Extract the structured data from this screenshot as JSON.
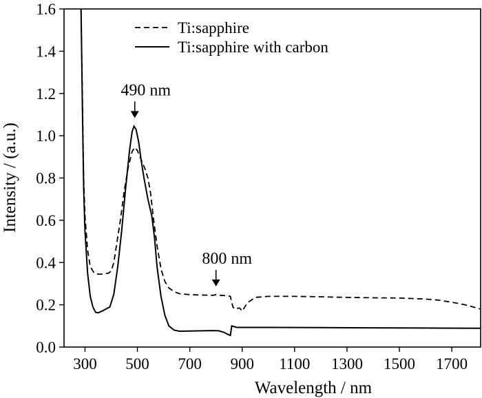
{
  "chart_data": {
    "type": "line",
    "title": "",
    "xlabel": "Wavelength / nm",
    "ylabel": "Intensity / (a.u.)",
    "xlim": [
      220,
      1810
    ],
    "ylim": [
      0.0,
      1.6
    ],
    "x_ticks": [
      300,
      500,
      700,
      900,
      1100,
      1300,
      1500,
      1700
    ],
    "x_tick_labels": [
      "300",
      "500",
      "700",
      "900",
      "1100",
      "1300",
      "1500",
      "1700"
    ],
    "y_ticks": [
      0.0,
      0.2,
      0.4,
      0.6,
      0.8,
      1.0,
      1.2,
      1.4,
      1.6
    ],
    "y_tick_labels": [
      "0.0",
      "0.2",
      "0.4",
      "0.6",
      "0.8",
      "1.0",
      "1.2",
      "1.4",
      "1.6"
    ],
    "grid": false,
    "legend_position": "top-center",
    "series": [
      {
        "name": "Ti:sapphire",
        "style": "dashed",
        "color": "#000000",
        "points": [
          [
            285,
            1.6
          ],
          [
            290,
            1.2
          ],
          [
            295,
            0.8
          ],
          [
            300,
            0.62
          ],
          [
            310,
            0.46
          ],
          [
            320,
            0.38
          ],
          [
            335,
            0.35
          ],
          [
            350,
            0.345
          ],
          [
            370,
            0.345
          ],
          [
            390,
            0.35
          ],
          [
            400,
            0.36
          ],
          [
            410,
            0.4
          ],
          [
            420,
            0.48
          ],
          [
            435,
            0.6
          ],
          [
            450,
            0.74
          ],
          [
            465,
            0.85
          ],
          [
            480,
            0.925
          ],
          [
            490,
            0.945
          ],
          [
            500,
            0.93
          ],
          [
            510,
            0.9
          ],
          [
            520,
            0.87
          ],
          [
            530,
            0.84
          ],
          [
            540,
            0.8
          ],
          [
            550,
            0.73
          ],
          [
            560,
            0.62
          ],
          [
            575,
            0.48
          ],
          [
            590,
            0.37
          ],
          [
            605,
            0.31
          ],
          [
            620,
            0.28
          ],
          [
            640,
            0.262
          ],
          [
            660,
            0.253
          ],
          [
            700,
            0.248
          ],
          [
            750,
            0.246
          ],
          [
            790,
            0.245
          ],
          [
            800,
            0.248
          ],
          [
            810,
            0.245
          ],
          [
            840,
            0.243
          ],
          [
            855,
            0.24
          ],
          [
            860,
            0.21
          ],
          [
            865,
            0.19
          ],
          [
            870,
            0.18
          ],
          [
            890,
            0.185
          ],
          [
            900,
            0.17
          ],
          [
            920,
            0.21
          ],
          [
            950,
            0.235
          ],
          [
            1000,
            0.24
          ],
          [
            1100,
            0.24
          ],
          [
            1200,
            0.238
          ],
          [
            1300,
            0.235
          ],
          [
            1400,
            0.233
          ],
          [
            1500,
            0.232
          ],
          [
            1600,
            0.227
          ],
          [
            1650,
            0.222
          ],
          [
            1700,
            0.212
          ],
          [
            1750,
            0.2
          ],
          [
            1810,
            0.18
          ]
        ]
      },
      {
        "name": "Ti:sapphire with carbon",
        "style": "solid",
        "color": "#000000",
        "points": [
          [
            285,
            1.6
          ],
          [
            290,
            1.15
          ],
          [
            295,
            0.75
          ],
          [
            300,
            0.55
          ],
          [
            310,
            0.35
          ],
          [
            320,
            0.24
          ],
          [
            330,
            0.19
          ],
          [
            340,
            0.165
          ],
          [
            350,
            0.162
          ],
          [
            365,
            0.17
          ],
          [
            380,
            0.18
          ],
          [
            395,
            0.19
          ],
          [
            410,
            0.25
          ],
          [
            425,
            0.38
          ],
          [
            440,
            0.55
          ],
          [
            455,
            0.75
          ],
          [
            470,
            0.93
          ],
          [
            480,
            1.02
          ],
          [
            487,
            1.045
          ],
          [
            495,
            1.03
          ],
          [
            505,
            0.97
          ],
          [
            515,
            0.88
          ],
          [
            525,
            0.8
          ],
          [
            540,
            0.7
          ],
          [
            555,
            0.62
          ],
          [
            565,
            0.52
          ],
          [
            575,
            0.38
          ],
          [
            590,
            0.24
          ],
          [
            605,
            0.15
          ],
          [
            620,
            0.1
          ],
          [
            640,
            0.08
          ],
          [
            660,
            0.075
          ],
          [
            700,
            0.076
          ],
          [
            750,
            0.077
          ],
          [
            790,
            0.078
          ],
          [
            810,
            0.077
          ],
          [
            830,
            0.07
          ],
          [
            845,
            0.06
          ],
          [
            855,
            0.055
          ],
          [
            860,
            0.1
          ],
          [
            880,
            0.093
          ],
          [
            900,
            0.093
          ],
          [
            1000,
            0.093
          ],
          [
            1200,
            0.092
          ],
          [
            1400,
            0.091
          ],
          [
            1600,
            0.09
          ],
          [
            1810,
            0.089
          ]
        ]
      }
    ],
    "annotations": [
      {
        "text": "490 nm",
        "x": 490,
        "y": 1.045,
        "arrow": "down"
      },
      {
        "text": "800 nm",
        "x": 800,
        "y": 0.248,
        "arrow": "down"
      }
    ]
  }
}
